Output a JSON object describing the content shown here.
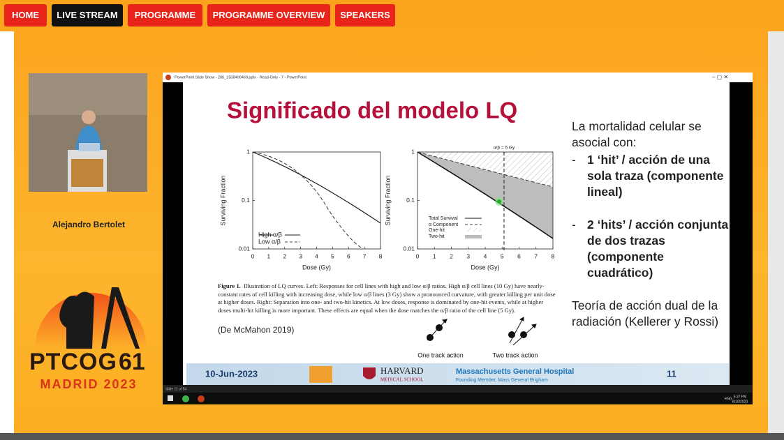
{
  "nav": [
    "HOME",
    "LIVE STREAM",
    "PROGRAMME",
    "PROGRAMME OVERVIEW",
    "SPEAKERS"
  ],
  "speaker": {
    "name": "Alejandro Bertolet"
  },
  "event": {
    "name": "PTCOG",
    "number": "61",
    "location": "MADRID 2023"
  },
  "window": {
    "title": "PowerPoint Slide Show - 205_1508400469.pptx - Read-Only - 7 - PowerPoint"
  },
  "slide": {
    "title": "Significado del modelo LQ",
    "intro": "La mortalidad celular se asocial con:",
    "bullets": [
      "1 ‘hit’ / acción de una sola traza (componente lineal)",
      "2 ‘hits’ / acción conjunta de dos trazas (componente cuadrático)"
    ],
    "conclusion": "Teoría de acción dual de la radiación (Kellerer y Rossi)",
    "charts": [
      {
        "xlabel": "Dose (Gy)",
        "ylabel": "Surviving Fraction",
        "xticks": [
          "0",
          "1",
          "2",
          "3",
          "4",
          "5",
          "6",
          "7",
          "8"
        ],
        "yticks": [
          "1",
          "0.1",
          "0.01"
        ],
        "legend": [
          "High α/β",
          "Low α/β"
        ]
      },
      {
        "xlabel": "Dose (Gy)",
        "ylabel": "Surviving Fraction",
        "xticks": [
          "0",
          "1",
          "2",
          "3",
          "4",
          "5",
          "6",
          "7",
          "8"
        ],
        "yticks": [
          "1",
          "0.1",
          "0.01"
        ],
        "legend": [
          "Total Survival",
          "α Component",
          "One-hit",
          "Two-hit"
        ],
        "annotation": "α/β = 5 Gy"
      }
    ],
    "caption_label": "Figure 1.",
    "caption": "Illustration of LQ curves. Left: Responses for cell lines with high and low α/β ratios. High α/β cell lines (10 Gy) have nearly-constant rates of cell killing with increasing dose, while low α/β lines (3 Gy) show a pronounced curvature, with greater killing per unit dose at higher doses. Right: Separation into one- and two-hit kinetics. At low doses, response is dominated by one-hit events, while at higher doses multi-hit killing is more important. These effects are equal when the dose matches the α/β ratio of the cell line (5 Gy).",
    "citation": "(De McMahon 2019)",
    "diagrams": [
      "One track action",
      "Two track action"
    ],
    "footer": {
      "date": "10-Jun-2023",
      "harvard": "HARVARD",
      "harvard_sub": "MEDICAL SCHOOL",
      "hospital": "Massachusetts General Hospital",
      "hospital_sub": "Founding Member, Mass General Brigham",
      "page": "11"
    }
  },
  "status": "Slide 11 of 54",
  "taskbar": {
    "language": "ENG",
    "time": "5:37 PM",
    "date": "6/10/2023"
  }
}
